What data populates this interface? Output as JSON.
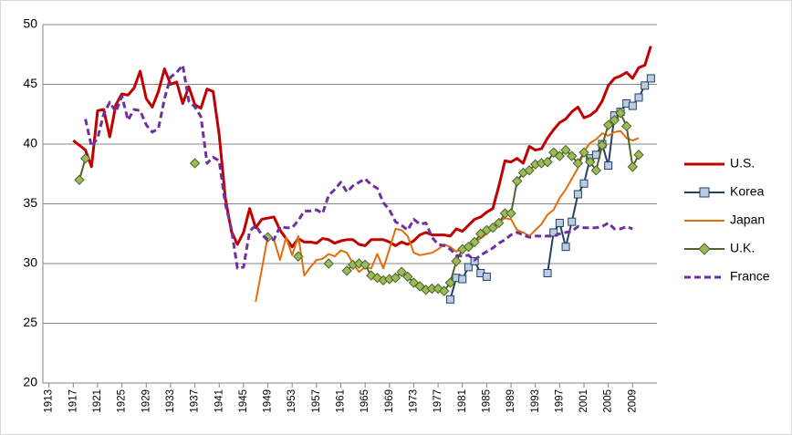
{
  "chart_data": {
    "type": "line",
    "xlim": [
      1912,
      2013
    ],
    "xticks": [
      1913,
      1917,
      1921,
      1925,
      1929,
      1933,
      1937,
      1941,
      1945,
      1949,
      1953,
      1957,
      1961,
      1965,
      1969,
      1973,
      1977,
      1981,
      1985,
      1989,
      1993,
      1997,
      2001,
      2005,
      2009
    ],
    "ylim": [
      20,
      50
    ],
    "yticks": [
      20,
      25,
      30,
      35,
      40,
      45,
      50
    ],
    "grid": true,
    "legend": "right",
    "series": [
      {
        "name": "U.S.",
        "color": "#c00000",
        "width": 3,
        "marker": null,
        "dash": false,
        "x": [
          1917,
          1918,
          1919,
          1920,
          1921,
          1922,
          1923,
          1924,
          1925,
          1926,
          1927,
          1928,
          1929,
          1930,
          1931,
          1932,
          1933,
          1934,
          1935,
          1936,
          1937,
          1938,
          1939,
          1940,
          1941,
          1942,
          1943,
          1944,
          1945,
          1946,
          1947,
          1948,
          1949,
          1950,
          1951,
          1952,
          1953,
          1954,
          1955,
          1956,
          1957,
          1958,
          1959,
          1960,
          1961,
          1962,
          1963,
          1964,
          1965,
          1966,
          1967,
          1968,
          1969,
          1970,
          1971,
          1972,
          1973,
          1974,
          1975,
          1976,
          1977,
          1978,
          1979,
          1980,
          1981,
          1982,
          1983,
          1984,
          1985,
          1986,
          1987,
          1988,
          1989,
          1990,
          1991,
          1992,
          1993,
          1994,
          1995,
          1996,
          1997,
          1998,
          1999,
          2000,
          2001,
          2002,
          2003,
          2004,
          2005,
          2006,
          2007,
          2008,
          2009,
          2010,
          2011,
          2012
        ],
        "values": [
          40.3,
          39.9,
          39.5,
          38.1,
          42.8,
          42.9,
          40.6,
          43.3,
          44.2,
          44.1,
          44.7,
          46.1,
          43.8,
          43.1,
          44.4,
          46.3,
          45.0,
          45.2,
          43.4,
          44.8,
          43.3,
          43.0,
          44.6,
          44.4,
          40.8,
          35.5,
          32.7,
          31.6,
          32.6,
          34.6,
          33.0,
          33.7,
          33.8,
          33.9,
          32.8,
          32.1,
          31.4,
          32.1,
          31.8,
          31.8,
          31.7,
          32.1,
          32.0,
          31.7,
          31.9,
          32.0,
          32.0,
          31.6,
          31.5,
          32.0,
          32.0,
          32.0,
          31.8,
          31.5,
          31.8,
          31.6,
          31.9,
          32.4,
          32.6,
          32.4,
          32.4,
          32.4,
          32.3,
          32.9,
          32.7,
          33.2,
          33.7,
          33.9,
          34.3,
          34.6,
          36.5,
          38.6,
          38.5,
          38.8,
          38.4,
          39.8,
          39.5,
          39.6,
          40.5,
          41.2,
          41.8,
          42.1,
          42.7,
          43.1,
          42.2,
          42.4,
          42.8,
          43.6,
          44.9,
          45.5,
          45.7,
          46.0,
          45.5,
          46.4,
          46.6,
          48.2
        ]
      },
      {
        "name": "Korea",
        "color": "#254061",
        "width": 2,
        "marker": "square",
        "marker_color": "#b9cde5",
        "dash": false,
        "x": [
          1979,
          1980,
          1981,
          1982,
          1983,
          1984,
          1985,
          1986,
          1995,
          1996,
          1997,
          1998,
          1999,
          2000,
          2001,
          2002,
          2003,
          2004,
          2005,
          2006,
          2007,
          2008,
          2009,
          2010,
          2011,
          2012
        ],
        "values": [
          27.0,
          28.8,
          28.7,
          29.7,
          30.2,
          29.2,
          28.9,
          null,
          29.2,
          32.6,
          33.4,
          31.4,
          33.5,
          35.8,
          36.7,
          38.8,
          39.1,
          40.0,
          38.2,
          42.4,
          42.7,
          43.4,
          43.2,
          43.9,
          44.9,
          45.5
        ]
      },
      {
        "name": "Japan",
        "color": "#e46c0a",
        "width": 2,
        "marker": null,
        "dash": false,
        "x": [
          1947,
          1948,
          1949,
          1950,
          1951,
          1952,
          1953,
          1954,
          1955,
          1956,
          1957,
          1958,
          1959,
          1960,
          1961,
          1962,
          1963,
          1964,
          1965,
          1966,
          1967,
          1968,
          1969,
          1970,
          1971,
          1972,
          1973,
          1974,
          1975,
          1976,
          1977,
          1978,
          1979,
          1980,
          1981,
          1982,
          1983,
          1984,
          1985,
          1986,
          1987,
          1988,
          1989,
          1990,
          1991,
          1992,
          1993,
          1994,
          1995,
          1996,
          1997,
          1998,
          1999,
          2000,
          2001,
          2002,
          2003,
          2004,
          2005,
          2006,
          2007,
          2008,
          2009,
          2010
        ],
        "values": [
          26.8,
          29.5,
          32.3,
          32.0,
          30.3,
          32.2,
          30.7,
          32.3,
          29.0,
          29.7,
          30.3,
          30.4,
          30.8,
          30.6,
          31.1,
          30.9,
          30.0,
          29.3,
          29.7,
          29.6,
          30.8,
          29.6,
          31.2,
          32.9,
          32.8,
          32.3,
          30.9,
          30.7,
          30.8,
          30.9,
          31.2,
          31.6,
          31.4,
          31.0,
          31.3,
          31.4,
          31.8,
          32.1,
          32.5,
          33.0,
          33.5,
          33.8,
          33.7,
          32.8,
          32.6,
          32.3,
          32.8,
          33.3,
          34.1,
          34.5,
          35.5,
          36.2,
          37.1,
          38.0,
          39.4,
          40.1,
          40.4,
          40.9,
          40.7,
          41.0,
          41.1,
          40.5,
          40.3,
          40.5
        ]
      },
      {
        "name": "U.K.",
        "color": "#4f6228",
        "width": 2,
        "marker": "diamond",
        "marker_color": "#9bbb59",
        "dash": false,
        "x": [
          1918,
          1919,
          1920,
          1937,
          1938,
          1949,
          1950,
          1954,
          1955,
          1959,
          1960,
          1962,
          1963,
          1964,
          1965,
          1966,
          1967,
          1968,
          1969,
          1970,
          1971,
          1972,
          1973,
          1974,
          1975,
          1976,
          1977,
          1978,
          1979,
          1980,
          1981,
          1982,
          1983,
          1984,
          1985,
          1986,
          1987,
          1988,
          1989,
          1990,
          1991,
          1992,
          1993,
          1994,
          1995,
          1996,
          1997,
          1998,
          1999,
          2000,
          2001,
          2002,
          2003,
          2004,
          2005,
          2006,
          2007,
          2008,
          2009,
          2010
        ],
        "values": [
          37.0,
          38.8,
          null,
          38.4,
          null,
          32.2,
          null,
          30.6,
          null,
          30.0,
          null,
          29.4,
          29.9,
          30.0,
          29.9,
          29.0,
          28.8,
          28.6,
          28.7,
          28.8,
          29.3,
          28.9,
          28.4,
          28.1,
          27.8,
          27.9,
          27.9,
          27.7,
          28.4,
          30.2,
          31.2,
          31.4,
          31.8,
          32.5,
          32.8,
          33.0,
          33.4,
          34.2,
          34.2,
          36.9,
          37.6,
          37.8,
          38.3,
          38.4,
          38.5,
          39.3,
          39.0,
          39.5,
          39.0,
          38.4,
          39.3,
          38.5,
          37.8,
          39.9,
          41.6,
          42.0,
          42.6,
          41.5,
          38.1,
          39.1
        ]
      },
      {
        "name": "France",
        "color": "#7030a0",
        "width": 3,
        "marker": null,
        "dash": true,
        "x": [
          1919,
          1920,
          1921,
          1922,
          1923,
          1924,
          1925,
          1926,
          1927,
          1928,
          1929,
          1930,
          1931,
          1932,
          1933,
          1934,
          1935,
          1936,
          1937,
          1938,
          1939,
          1940,
          1941,
          1942,
          1943,
          1944,
          1945,
          1946,
          1947,
          1948,
          1949,
          1950,
          1951,
          1952,
          1953,
          1954,
          1955,
          1956,
          1957,
          1958,
          1959,
          1960,
          1961,
          1962,
          1963,
          1964,
          1965,
          1966,
          1967,
          1968,
          1969,
          1970,
          1971,
          1972,
          1973,
          1974,
          1975,
          1976,
          1977,
          1978,
          1979,
          1980,
          1981,
          1982,
          1983,
          1984,
          1985,
          1986,
          1987,
          1988,
          1989,
          1990,
          1991,
          1992,
          1993,
          1994,
          1995,
          1996,
          1997,
          1998,
          1999,
          2000,
          2001,
          2002,
          2003,
          2004,
          2005,
          2006,
          2007,
          2008,
          2009
        ],
        "values": [
          42.1,
          39.8,
          40.5,
          42.5,
          43.5,
          42.7,
          44.0,
          42.0,
          42.9,
          42.8,
          41.6,
          41.0,
          41.3,
          43.8,
          45.6,
          46.0,
          46.6,
          43.6,
          43.1,
          42.3,
          38.4,
          38.9,
          38.6,
          35.0,
          32.9,
          29.6,
          29.7,
          32.7,
          33.2,
          32.4,
          32.0,
          32.0,
          33.1,
          33.0,
          33.0,
          33.6,
          34.4,
          34.4,
          34.5,
          34.2,
          35.7,
          36.2,
          36.8,
          36.0,
          36.5,
          36.8,
          37.1,
          36.6,
          36.3,
          35.1,
          34.5,
          33.5,
          33.2,
          32.8,
          33.7,
          33.3,
          33.4,
          32.2,
          31.6,
          31.5,
          31.2,
          30.7,
          30.6,
          30.7,
          30.3,
          30.7,
          31.0,
          31.3,
          31.7,
          32.0,
          32.4,
          32.6,
          32.4,
          32.2,
          32.3,
          32.3,
          32.3,
          32.3,
          32.5,
          32.6,
          32.7,
          33.1,
          33.0,
          33.0,
          33.0,
          33.1,
          33.4,
          32.9,
          32.9,
          33.1,
          32.9
        ]
      }
    ]
  }
}
